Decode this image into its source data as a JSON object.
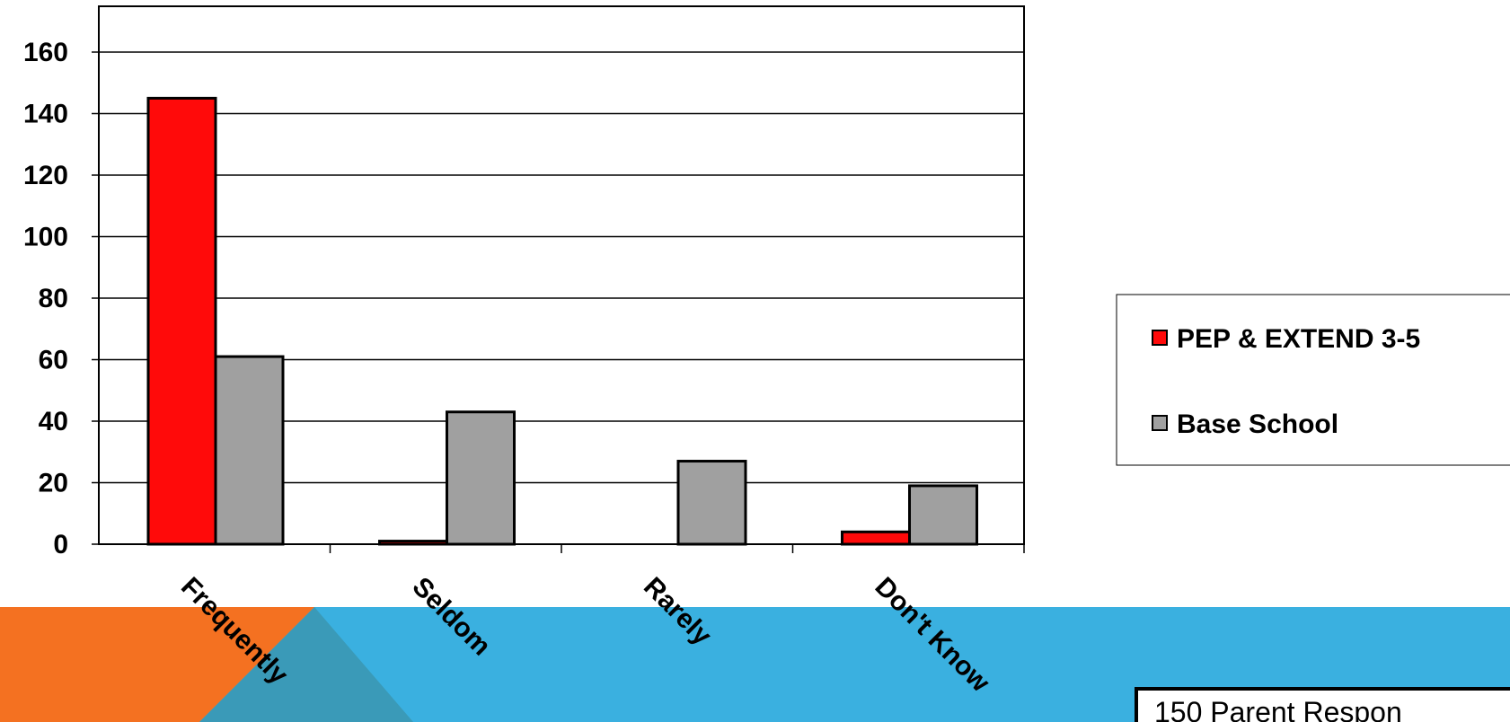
{
  "chart_data": {
    "type": "bar",
    "categories": [
      "Frequently",
      "Seldom",
      "Rarely",
      "Don't Know"
    ],
    "series": [
      {
        "name": "PEP & EXTEND 3-5",
        "color": "#ff0a0a",
        "values": [
          145,
          1,
          0,
          4
        ]
      },
      {
        "name": "Base School",
        "color": "#a0a0a0",
        "values": [
          61,
          43,
          27,
          19
        ]
      }
    ],
    "yticks": [
      0,
      20,
      40,
      60,
      80,
      100,
      120,
      140,
      160
    ],
    "ylim": [
      0,
      175
    ],
    "grid": true,
    "legend_position": "right"
  },
  "footer": {
    "note": "150 Parent Respon",
    "accent_color": "#f47121",
    "band_color": "#3ab0e0",
    "overlay_color": "#3a9ab8"
  }
}
